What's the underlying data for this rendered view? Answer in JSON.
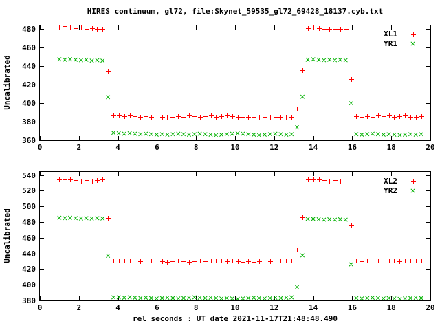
{
  "page": {
    "title": "HIRES continuum, gl72, file:Skynet_59535_gl72_69428_18137.cyb.txt",
    "xlabel": "rel seconds : UT date 2021-11-17T21:48:48.490"
  },
  "colors": {
    "axis": "#000000",
    "background": "#ffffff",
    "series_red": "#ff0000",
    "series_green": "#00b000"
  },
  "chart_data": [
    {
      "type": "scatter",
      "panel": "top",
      "ylabel": "Uncalibrated",
      "xlim": [
        0,
        20
      ],
      "ylim": [
        360,
        484
      ],
      "xticks": [
        0,
        2,
        4,
        6,
        8,
        10,
        12,
        14,
        16,
        18,
        20
      ],
      "yticks": [
        360,
        380,
        400,
        420,
        440,
        460,
        480
      ],
      "legend_position": "top-right-inside",
      "x": [
        1.0,
        1.28,
        1.55,
        1.83,
        2.11,
        2.38,
        2.66,
        2.94,
        3.21,
        3.49,
        3.77,
        4.04,
        4.32,
        4.6,
        4.87,
        5.15,
        5.43,
        5.7,
        5.98,
        6.26,
        6.53,
        6.81,
        7.09,
        7.36,
        7.64,
        7.92,
        8.19,
        8.47,
        8.75,
        9.02,
        9.3,
        9.57,
        9.85,
        10.13,
        10.4,
        10.68,
        10.96,
        11.23,
        11.51,
        11.79,
        12.06,
        12.34,
        12.62,
        12.89,
        13.17,
        13.45,
        13.72,
        14.0,
        14.28,
        14.55,
        14.83,
        15.11,
        15.38,
        15.66,
        15.94,
        16.21,
        16.49,
        16.77,
        17.04,
        17.32,
        17.6,
        17.87,
        18.15,
        18.43,
        18.7,
        18.98,
        19.25,
        19.53
      ],
      "series": [
        {
          "name": "XL1",
          "marker": "plus",
          "color": "#ff0000",
          "y": [
            481.5,
            483.0,
            481.5,
            481.0,
            481.5,
            480.5,
            481.0,
            480.0,
            480.5,
            435.0,
            386.5,
            386.5,
            386.0,
            386.5,
            386.0,
            385.5,
            386.0,
            385.0,
            384.5,
            385.0,
            384.5,
            385.5,
            386.0,
            385.5,
            386.5,
            386.0,
            385.5,
            386.0,
            386.5,
            385.5,
            386.0,
            386.5,
            386.0,
            385.5,
            385.0,
            385.5,
            385.0,
            384.5,
            385.0,
            384.5,
            385.5,
            385.0,
            384.5,
            385.0,
            394.5,
            435.5,
            481.0,
            481.5,
            481.0,
            480.0,
            480.0,
            480.0,
            480.5,
            480.0,
            426.0,
            386.0,
            385.5,
            386.0,
            385.5,
            386.5,
            386.0,
            387.0,
            385.5,
            386.0,
            386.5,
            385.5,
            385.0,
            386.0
          ]
        },
        {
          "name": "YR1",
          "marker": "cross",
          "color": "#00b000",
          "y": [
            447.5,
            447.0,
            447.5,
            447.0,
            446.5,
            447.0,
            446.0,
            446.5,
            446.0,
            406.5,
            368.0,
            367.5,
            367.0,
            367.5,
            367.0,
            366.5,
            367.0,
            366.5,
            366.0,
            366.5,
            366.0,
            366.5,
            367.0,
            366.5,
            366.0,
            366.5,
            367.0,
            366.5,
            366.0,
            365.5,
            366.0,
            366.5,
            367.0,
            367.5,
            367.0,
            366.5,
            366.0,
            365.5,
            366.0,
            366.5,
            367.0,
            366.5,
            366.0,
            366.5,
            374.0,
            407.0,
            447.0,
            447.5,
            447.0,
            446.5,
            447.0,
            446.5,
            447.0,
            446.5,
            400.0,
            366.5,
            366.0,
            366.5,
            367.0,
            366.5,
            366.0,
            366.5,
            366.0,
            365.5,
            366.0,
            366.5,
            366.0,
            366.5
          ]
        }
      ]
    },
    {
      "type": "scatter",
      "panel": "bottom",
      "ylabel": "Uncalibrated",
      "xlim": [
        0,
        20
      ],
      "ylim": [
        380,
        544
      ],
      "xticks": [
        0,
        2,
        4,
        6,
        8,
        10,
        12,
        14,
        16,
        18,
        20
      ],
      "yticks": [
        380,
        400,
        420,
        440,
        460,
        480,
        500,
        520,
        540
      ],
      "legend_position": "top-right-inside",
      "x": [
        1.0,
        1.28,
        1.55,
        1.83,
        2.11,
        2.38,
        2.66,
        2.94,
        3.21,
        3.49,
        3.77,
        4.04,
        4.32,
        4.6,
        4.87,
        5.15,
        5.43,
        5.7,
        5.98,
        6.26,
        6.53,
        6.81,
        7.09,
        7.36,
        7.64,
        7.92,
        8.19,
        8.47,
        8.75,
        9.02,
        9.3,
        9.57,
        9.85,
        10.13,
        10.4,
        10.68,
        10.96,
        11.23,
        11.51,
        11.79,
        12.06,
        12.34,
        12.62,
        12.89,
        13.17,
        13.45,
        13.72,
        14.0,
        14.28,
        14.55,
        14.83,
        15.11,
        15.38,
        15.66,
        15.94,
        16.21,
        16.49,
        16.77,
        17.04,
        17.32,
        17.6,
        17.87,
        18.15,
        18.43,
        18.7,
        18.98,
        19.25,
        19.53
      ],
      "series": [
        {
          "name": "XL2",
          "marker": "plus",
          "color": "#ff0000",
          "y": [
            534.0,
            534.5,
            534.0,
            533.5,
            533.0,
            533.5,
            533.0,
            533.5,
            534.0,
            485.5,
            431.0,
            431.0,
            430.5,
            431.0,
            430.5,
            430.0,
            430.5,
            431.0,
            430.5,
            430.0,
            429.5,
            430.0,
            430.5,
            430.0,
            429.5,
            430.0,
            430.5,
            430.0,
            430.5,
            431.0,
            430.5,
            430.0,
            430.5,
            430.0,
            429.5,
            430.0,
            429.5,
            430.0,
            430.5,
            430.0,
            430.5,
            431.0,
            430.5,
            431.0,
            445.0,
            486.0,
            534.0,
            534.5,
            534.0,
            533.5,
            533.0,
            533.5,
            532.5,
            533.0,
            475.5,
            430.5,
            430.0,
            430.5,
            431.0,
            430.5,
            430.5,
            431.0,
            430.5,
            430.0,
            430.5,
            431.0,
            430.5,
            430.5
          ]
        },
        {
          "name": "YR2",
          "marker": "cross",
          "color": "#00b000",
          "y": [
            485.5,
            485.0,
            485.5,
            485.0,
            484.5,
            485.0,
            484.5,
            485.0,
            484.5,
            437.0,
            384.0,
            384.0,
            383.5,
            384.0,
            383.5,
            383.0,
            383.5,
            383.0,
            382.5,
            383.0,
            383.5,
            383.0,
            382.5,
            383.0,
            383.5,
            384.0,
            383.5,
            383.0,
            383.5,
            383.0,
            382.5,
            383.0,
            382.5,
            382.0,
            382.5,
            383.0,
            383.5,
            383.0,
            382.5,
            383.0,
            383.5,
            383.0,
            383.5,
            384.0,
            397.0,
            437.5,
            484.0,
            484.0,
            483.5,
            483.0,
            483.5,
            483.0,
            483.5,
            483.0,
            426.0,
            383.0,
            382.5,
            383.0,
            383.5,
            383.0,
            382.5,
            383.0,
            382.5,
            382.0,
            382.5,
            383.0,
            383.5,
            383.0
          ]
        }
      ]
    }
  ]
}
